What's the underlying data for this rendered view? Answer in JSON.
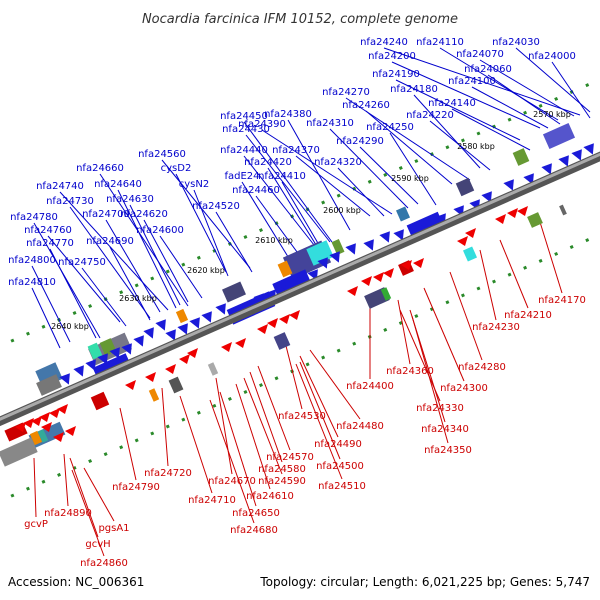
{
  "title": "Nocardia farcinica IFM 10152, complete genome",
  "accession_text": "Accession: NC_006361",
  "summary_text": "Topology: circular; Length: 6,021,225 bp; Genes: 5,747",
  "colors": {
    "upper_label": "#0000cc",
    "lower_label": "#cc0000",
    "backbone": "#777777",
    "tick": "#2a8a2a"
  },
  "kbp_ticks": [
    "2570 kbp",
    "2580 kbp",
    "2590 kbp",
    "2600 kbp",
    "2610 kbp",
    "2620 kbp",
    "2630 kbp",
    "2640 kbp"
  ],
  "upper_labels": [
    "nfa24240",
    "nfa24110",
    "nfa24030",
    "nfa24200",
    "nfa24070",
    "nfa24000",
    "nfa24060",
    "nfa24190",
    "nfa24100",
    "nfa24270",
    "nfa24180",
    "nfa24260",
    "nfa24140",
    "nfa24390",
    "nfa24220",
    "nfa24450",
    "nfa24380",
    "nfa24250",
    "nfa24310",
    "nfa24430",
    "nfa24290",
    "nfa24440",
    "nfa24370",
    "nfa24560",
    "nfa24420",
    "nfa24320",
    "cysD2",
    "nfa24660",
    "fadE24",
    "nfa24410",
    "cysN2",
    "nfa24740",
    "nfa24640",
    "nfa24460",
    "nfa24730",
    "nfa24630",
    "nfa24520",
    "nfa24780",
    "nfa24700",
    "nfa24620",
    "nfa24760",
    "nfa24600",
    "nfa24770",
    "nfa24690",
    "nfa24800",
    "nfa24750",
    "nfa24810"
  ],
  "lower_labels": [
    "nfa24170",
    "nfa24210",
    "nfa24230",
    "nfa24280",
    "nfa24360",
    "nfa24400",
    "nfa24300",
    "nfa24330",
    "nfa24480",
    "nfa24340",
    "nfa24530",
    "nfa24490",
    "nfa24350",
    "nfa24570",
    "nfa24500",
    "nfa24580",
    "nfa24720",
    "nfa24590",
    "nfa24670",
    "nfa24510",
    "nfa24790",
    "nfa24610",
    "nfa24710",
    "nfa24650",
    "nfa24680",
    "gcvP",
    "nfa24890",
    "pgsA1",
    "gcvH",
    "nfa24860"
  ]
}
